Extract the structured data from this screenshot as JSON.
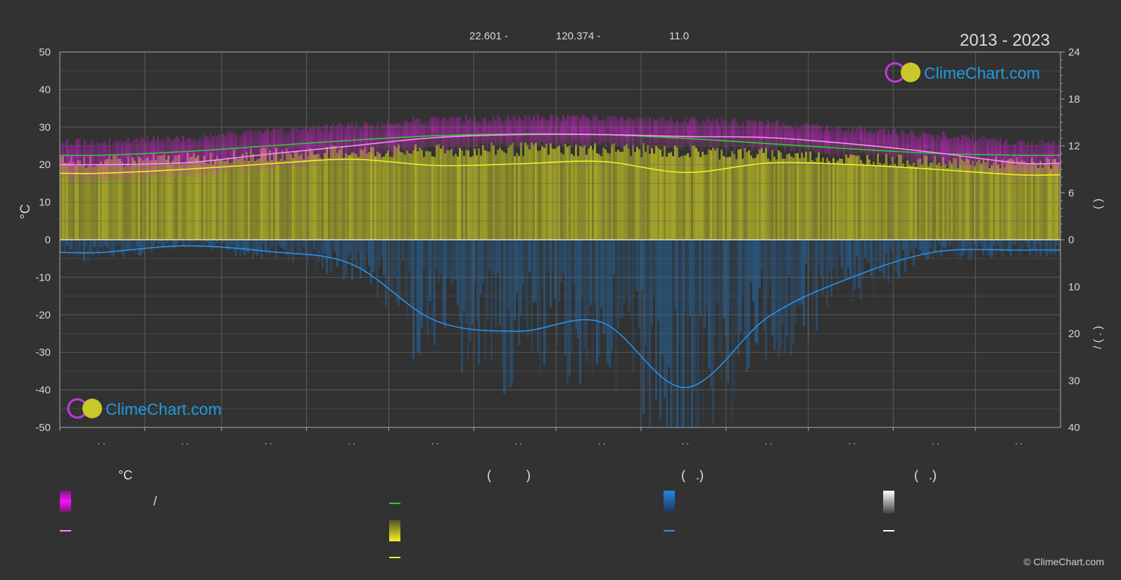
{
  "header": {
    "lat": "22.601 -",
    "lon": "120.374 -",
    "elev": "11.0",
    "period": "2013 - 2023"
  },
  "brand": {
    "name": "ClimeChart.com",
    "copyright": "© ClimeChart.com"
  },
  "colors": {
    "background": "#323232",
    "temp_band": "#d21ed2",
    "sun_band": "#b4b428",
    "precip_band": "#1e78c8",
    "daylight_line": "#2ecc2e",
    "temp_mean_line": "#ff8cff",
    "sunshine_line": "#f0f028",
    "precip_line": "#2891ee",
    "brand_text": "#1e9be0"
  },
  "chart_data": {
    "type": "line",
    "x": [
      1,
      2,
      3,
      4,
      5,
      6,
      7,
      8,
      9,
      10,
      11,
      12
    ],
    "x_tick_labels": [
      ". .",
      ". .",
      ". .",
      ". .",
      ". .",
      ". .",
      ". .",
      ". .",
      ". .",
      ". .",
      ". .",
      ". ."
    ],
    "left_axis": {
      "label": "°C",
      "ylim": [
        -50,
        50
      ],
      "ticks": [
        50,
        40,
        30,
        20,
        10,
        0,
        -10,
        -20,
        -30,
        -40,
        -50
      ]
    },
    "right_axis_top": {
      "label": "(   )",
      "ylim": [
        0,
        24
      ],
      "ticks": [
        24,
        18,
        12,
        6,
        0
      ]
    },
    "right_axis_bottom": {
      "label": "/   (  .  )",
      "ylim": [
        0,
        40
      ],
      "ticks": [
        0,
        10,
        20,
        30,
        40
      ]
    },
    "series": [
      {
        "name": "",
        "axis": "temp_c",
        "values": [
          22.5,
          23.5,
          25.0,
          26.5,
          27.7,
          28.2,
          28.0,
          27.0,
          25.6,
          24.2,
          23.0,
          22.5
        ]
      },
      {
        "name": "",
        "axis": "temp_c",
        "values": [
          20.0,
          20.5,
          22.8,
          25.0,
          27.2,
          28.0,
          28.0,
          27.5,
          27.2,
          25.5,
          23.2,
          20.4
        ]
      },
      {
        "name": "",
        "axis": "sun_hours",
        "values": [
          8.5,
          9.0,
          9.7,
          10.3,
          9.5,
          9.7,
          10.0,
          8.6,
          9.8,
          9.6,
          9.0,
          8.3
        ]
      },
      {
        "name": "",
        "axis": "precip_mm",
        "values": [
          2.7,
          1.3,
          2.5,
          5.2,
          17.2,
          19.5,
          17.6,
          31.5,
          16.4,
          8.0,
          2.6,
          2.2
        ]
      }
    ],
    "bands": [
      {
        "axis": "temp_c",
        "low": [
          17,
          18,
          20,
          22.5,
          25,
          26,
          26,
          25.5,
          25,
          23.5,
          21,
          18
        ],
        "high": [
          25,
          26,
          28,
          29.5,
          31,
          31.5,
          31.5,
          31,
          30,
          28.5,
          27,
          25
        ]
      },
      {
        "axis": "sun_hours",
        "low": [
          0,
          0,
          0,
          0,
          0,
          0,
          0,
          0,
          0,
          0,
          0,
          0
        ],
        "high": [
          10.8,
          11.2,
          11.8,
          12.2,
          12.2,
          12.5,
          12.5,
          12.2,
          11.8,
          11.2,
          10.8,
          10.6
        ]
      }
    ],
    "precip_bars": [
      2.7,
      1.3,
      2.5,
      5.2,
      17.2,
      19.5,
      17.6,
      31.5,
      16.4,
      8.0,
      2.6,
      2.2
    ],
    "grid": true,
    "legend_position": "bottom"
  },
  "legend": {
    "col1": {
      "head": "°C",
      "row1_text": "/"
    },
    "col2": {
      "head": "(          )"
    },
    "col3": {
      "head": "(   .)"
    },
    "col4": {
      "head": "(   .)"
    }
  }
}
